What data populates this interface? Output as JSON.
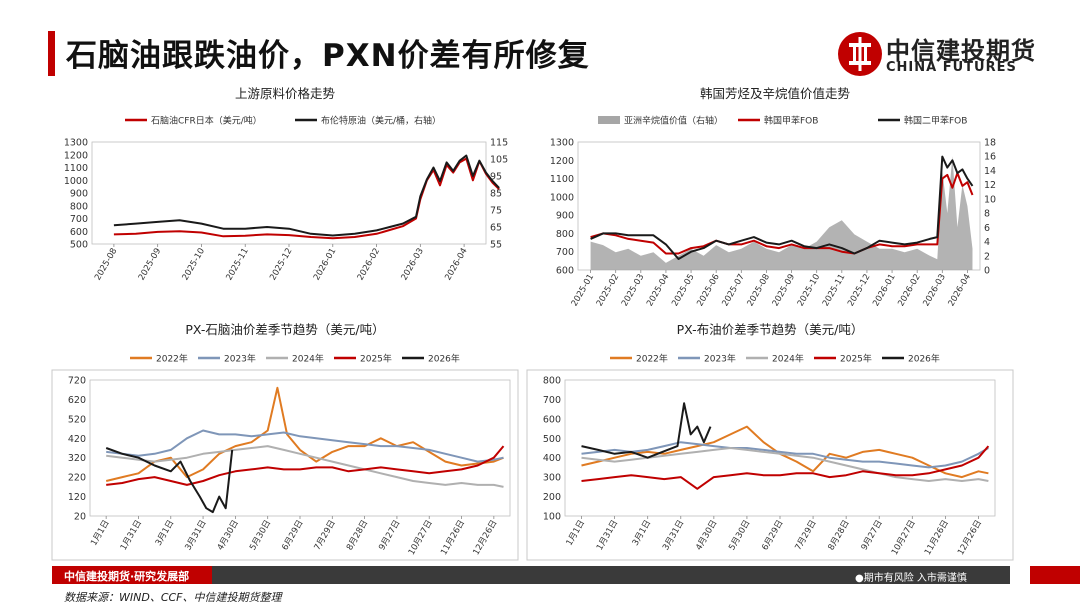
{
  "header": {
    "title": "石脑油跟跌油价，PXN价差有所修复",
    "logo_cn": "中信建投期货",
    "logo_en": "CHINA FUTURES"
  },
  "footer": {
    "brand": "中信建投期货·研究发展部",
    "risk": "●期市有风险   入市需谨慎",
    "source": "数据来源：WIND、CCF、中信建投期货整理"
  },
  "colors": {
    "red": "#c00000",
    "black": "#1a1a1a",
    "gray": "#a6a6a6",
    "orange": "#e07b22",
    "blue": "#7f96b8",
    "silver": "#b0b0b0"
  },
  "chart_data": [
    {
      "id": "c1",
      "type": "line",
      "title": "上游原料价格走势",
      "x_labels": [
        "2025-08",
        "2025-09",
        "2025-10",
        "2025-11",
        "2025-12",
        "2026-01",
        "2026-02",
        "2026-03",
        "2026-04"
      ],
      "y_left": {
        "min": 500,
        "max": 1300,
        "ticks": [
          500,
          600,
          700,
          800,
          900,
          1000,
          1100,
          1200,
          1300
        ]
      },
      "y_right": {
        "min": 55,
        "max": 115,
        "ticks": [
          55,
          65,
          75,
          85,
          95,
          105,
          115
        ]
      },
      "series": [
        {
          "name": "石脑油CFR日本（美元/吨）",
          "axis": "left",
          "color": "#c00000",
          "x": [
            0,
            0.5,
            1,
            1.5,
            2,
            2.5,
            3,
            3.5,
            4,
            4.5,
            5,
            5.5,
            6,
            6.3,
            6.6,
            6.9,
            7.0,
            7.15,
            7.3,
            7.45,
            7.6,
            7.75,
            7.9,
            8.05,
            8.2,
            8.35,
            8.5,
            8.65,
            8.8
          ],
          "values": [
            575,
            580,
            595,
            600,
            590,
            560,
            565,
            575,
            570,
            555,
            545,
            555,
            580,
            610,
            640,
            700,
            850,
            1000,
            1080,
            960,
            1120,
            1060,
            1140,
            1170,
            1000,
            1150,
            1050,
            980,
            930
          ]
        },
        {
          "name": "布伦特原油（美元/桶，右轴）",
          "axis": "right",
          "color": "#1a1a1a",
          "x": [
            0,
            0.5,
            1,
            1.5,
            2,
            2.5,
            3,
            3.5,
            4,
            4.5,
            5,
            5.5,
            6,
            6.3,
            6.6,
            6.9,
            7.0,
            7.15,
            7.3,
            7.45,
            7.6,
            7.75,
            7.9,
            8.05,
            8.2,
            8.35,
            8.5,
            8.65,
            8.8
          ],
          "values": [
            66,
            67,
            68,
            69,
            67,
            64,
            64,
            65,
            64,
            61,
            60,
            61,
            63,
            65,
            67,
            71,
            83,
            93,
            100,
            92,
            103,
            98,
            104,
            107,
            95,
            104,
            97,
            92,
            88
          ]
        }
      ]
    },
    {
      "id": "c2",
      "type": "line",
      "title": "韩国芳烃及辛烷值价值走势",
      "x_labels": [
        "2025-01",
        "2025-02",
        "2025-03",
        "2025-04",
        "2025-05",
        "2025-06",
        "2025-07",
        "2025-08",
        "2025-09",
        "2025-10",
        "2025-11",
        "2025-12",
        "2026-01",
        "2026-02",
        "2026-03",
        "2026-04"
      ],
      "y_left": {
        "min": 600,
        "max": 1300,
        "ticks": [
          600,
          700,
          800,
          900,
          1000,
          1100,
          1200,
          1300
        ]
      },
      "y_right": {
        "min": 0,
        "max": 18,
        "ticks": [
          0,
          2,
          4,
          6,
          8,
          10,
          12,
          14,
          16,
          18
        ]
      },
      "series": [
        {
          "name": "亚洲辛烷值价值（右轴）",
          "axis": "right",
          "color": "#a6a6a6",
          "kind": "area",
          "x": [
            0,
            0.5,
            1,
            1.5,
            2,
            2.5,
            3,
            3.5,
            4,
            4.5,
            5,
            5.5,
            6,
            6.5,
            7,
            7.5,
            8,
            8.5,
            9,
            9.5,
            10,
            10.5,
            11,
            11.5,
            12,
            12.5,
            13,
            13.5,
            13.8,
            14,
            14.2,
            14.4,
            14.6,
            14.8,
            15,
            15.2
          ],
          "values": [
            4,
            3.5,
            2.5,
            3,
            2,
            2.5,
            1,
            2,
            3,
            2,
            3.5,
            2.5,
            3,
            4,
            3,
            2.5,
            3.5,
            3,
            4,
            6,
            7,
            5,
            4,
            3,
            3,
            2.5,
            3,
            2,
            1.5,
            14,
            8,
            16,
            6,
            12,
            9,
            3
          ]
        },
        {
          "name": "韩国甲苯FOB",
          "axis": "left",
          "color": "#c00000",
          "x": [
            0,
            0.5,
            1,
            1.5,
            2,
            2.5,
            3,
            3.5,
            4,
            4.5,
            5,
            5.5,
            6,
            6.5,
            7,
            7.5,
            8,
            8.5,
            9,
            9.5,
            10,
            10.5,
            11,
            11.5,
            12,
            12.5,
            13,
            13.5,
            13.8,
            14,
            14.2,
            14.4,
            14.6,
            14.8,
            15,
            15.2
          ],
          "values": [
            780,
            800,
            790,
            770,
            760,
            750,
            690,
            690,
            720,
            730,
            760,
            740,
            740,
            760,
            730,
            720,
            740,
            720,
            720,
            720,
            700,
            690,
            720,
            740,
            730,
            730,
            740,
            740,
            740,
            1100,
            1120,
            1050,
            1130,
            1060,
            1080,
            1010
          ]
        },
        {
          "name": "韩国二甲苯FOB",
          "axis": "left",
          "color": "#1a1a1a",
          "x": [
            0,
            0.5,
            1,
            1.5,
            2,
            2.5,
            3,
            3.5,
            4,
            4.5,
            5,
            5.5,
            6,
            6.5,
            7,
            7.5,
            8,
            8.5,
            9,
            9.5,
            10,
            10.5,
            11,
            11.5,
            12,
            12.5,
            13,
            13.5,
            13.8,
            14,
            14.2,
            14.4,
            14.6,
            14.8,
            15,
            15.2
          ],
          "values": [
            770,
            800,
            800,
            790,
            790,
            790,
            740,
            660,
            700,
            720,
            760,
            740,
            760,
            780,
            750,
            740,
            760,
            730,
            720,
            740,
            720,
            690,
            720,
            760,
            750,
            740,
            750,
            770,
            780,
            1220,
            1160,
            1200,
            1130,
            1150,
            1100,
            1060
          ]
        }
      ]
    },
    {
      "id": "c3",
      "type": "line",
      "title": "PX-石脑油价差季节趋势（美元/吨）",
      "x_labels": [
        "1月1日",
        "1月31日",
        "3月1日",
        "3月31日",
        "4月30日",
        "5月30日",
        "6月29日",
        "7月29日",
        "8月28日",
        "9月27日",
        "10月27日",
        "11月26日",
        "12月26日"
      ],
      "y_left": {
        "min": 20,
        "max": 720,
        "ticks": [
          20,
          120,
          220,
          320,
          420,
          520,
          620,
          720
        ]
      },
      "series": [
        {
          "name": "2022年",
          "color": "#e07b22",
          "x": [
            0,
            0.5,
            1,
            1.5,
            2,
            2.5,
            3,
            3.5,
            4,
            4.5,
            5,
            5.3,
            5.6,
            6,
            6.5,
            7,
            7.5,
            8,
            8.5,
            9,
            9.5,
            10,
            10.5,
            11,
            11.5,
            12,
            12.3
          ],
          "values": [
            200,
            220,
            240,
            300,
            320,
            220,
            260,
            340,
            380,
            400,
            460,
            680,
            440,
            360,
            300,
            350,
            380,
            380,
            420,
            380,
            400,
            350,
            300,
            280,
            290,
            300,
            320
          ]
        },
        {
          "name": "2023年",
          "color": "#7f96b8",
          "x": [
            0,
            0.5,
            1,
            1.5,
            2,
            2.5,
            3,
            3.5,
            4,
            4.5,
            5,
            5.5,
            6,
            6.5,
            7,
            7.5,
            8,
            8.5,
            9,
            9.5,
            10,
            10.5,
            11,
            11.5,
            12,
            12.3
          ],
          "values": [
            350,
            340,
            330,
            340,
            360,
            420,
            460,
            440,
            440,
            430,
            440,
            450,
            430,
            420,
            410,
            400,
            390,
            380,
            380,
            370,
            360,
            340,
            320,
            300,
            310,
            320
          ]
        },
        {
          "name": "2024年",
          "color": "#b0b0b0",
          "x": [
            0,
            0.5,
            1,
            1.5,
            2,
            2.5,
            3,
            3.5,
            4,
            4.5,
            5,
            5.5,
            6,
            6.5,
            7,
            7.5,
            8,
            8.5,
            9,
            9.5,
            10,
            10.5,
            11,
            11.5,
            12,
            12.3
          ],
          "values": [
            330,
            320,
            310,
            300,
            310,
            320,
            340,
            350,
            360,
            370,
            380,
            360,
            340,
            320,
            300,
            280,
            260,
            240,
            220,
            200,
            190,
            180,
            190,
            180,
            180,
            170
          ]
        },
        {
          "name": "2025年",
          "color": "#c00000",
          "x": [
            0,
            0.5,
            1,
            1.5,
            2,
            2.5,
            3,
            3.5,
            4,
            4.5,
            5,
            5.5,
            6,
            6.5,
            7,
            7.5,
            8,
            8.5,
            9,
            9.5,
            10,
            10.5,
            11,
            11.5,
            12,
            12.3
          ],
          "values": [
            180,
            190,
            210,
            220,
            200,
            180,
            200,
            230,
            250,
            260,
            270,
            260,
            260,
            270,
            270,
            250,
            260,
            270,
            260,
            250,
            240,
            250,
            260,
            280,
            320,
            380
          ]
        },
        {
          "name": "2026年",
          "color": "#1a1a1a",
          "x": [
            0,
            0.5,
            1,
            1.5,
            2,
            2.3,
            2.6,
            2.9,
            3.1,
            3.3,
            3.5,
            3.7,
            3.9
          ],
          "values": [
            370,
            340,
            320,
            280,
            250,
            300,
            200,
            120,
            60,
            40,
            120,
            60,
            360
          ]
        }
      ]
    },
    {
      "id": "c4",
      "type": "line",
      "title": "PX-布油价差季节趋势（美元/吨）",
      "x_labels": [
        "1月1日",
        "1月31日",
        "3月1日",
        "3月31日",
        "4月30日",
        "5月30日",
        "6月29日",
        "7月29日",
        "8月28日",
        "9月27日",
        "10月27日",
        "11月26日",
        "12月26日"
      ],
      "y_left": {
        "min": 100,
        "max": 800,
        "ticks": [
          100,
          200,
          300,
          400,
          500,
          600,
          700,
          800
        ]
      },
      "series": [
        {
          "name": "2022年",
          "color": "#e07b22",
          "x": [
            0,
            0.5,
            1,
            1.5,
            2,
            2.5,
            3,
            3.5,
            4,
            4.5,
            5,
            5.5,
            6,
            6.5,
            7,
            7.5,
            8,
            8.5,
            9,
            9.5,
            10,
            10.5,
            11,
            11.5,
            12,
            12.3
          ],
          "values": [
            360,
            380,
            400,
            420,
            430,
            420,
            440,
            460,
            480,
            520,
            560,
            480,
            420,
            380,
            330,
            420,
            400,
            430,
            440,
            420,
            400,
            360,
            320,
            300,
            330,
            320
          ]
        },
        {
          "name": "2023年",
          "color": "#7f96b8",
          "x": [
            0,
            0.5,
            1,
            1.5,
            2,
            2.5,
            3,
            3.5,
            4,
            4.5,
            5,
            5.5,
            6,
            6.5,
            7,
            7.5,
            8,
            8.5,
            9,
            9.5,
            10,
            10.5,
            11,
            11.5,
            12,
            12.3
          ],
          "values": [
            420,
            430,
            440,
            430,
            440,
            460,
            480,
            470,
            460,
            450,
            450,
            440,
            430,
            420,
            420,
            400,
            390,
            380,
            380,
            370,
            360,
            350,
            360,
            380,
            420,
            450
          ]
        },
        {
          "name": "2024年",
          "color": "#b0b0b0",
          "x": [
            0,
            0.5,
            1,
            1.5,
            2,
            2.5,
            3,
            3.5,
            4,
            4.5,
            5,
            5.5,
            6,
            6.5,
            7,
            7.5,
            8,
            8.5,
            9,
            9.5,
            10,
            10.5,
            11,
            11.5,
            12,
            12.3
          ],
          "values": [
            400,
            390,
            380,
            390,
            400,
            410,
            420,
            430,
            440,
            450,
            440,
            430,
            420,
            410,
            400,
            380,
            360,
            340,
            320,
            300,
            290,
            280,
            290,
            280,
            290,
            280
          ]
        },
        {
          "name": "2025年",
          "color": "#c00000",
          "x": [
            0,
            0.5,
            1,
            1.5,
            2,
            2.5,
            3,
            3.5,
            4,
            4.5,
            5,
            5.5,
            6,
            6.5,
            7,
            7.5,
            8,
            8.5,
            9,
            9.5,
            10,
            10.5,
            11,
            11.5,
            12,
            12.3
          ],
          "values": [
            280,
            290,
            300,
            310,
            300,
            290,
            300,
            240,
            300,
            310,
            320,
            310,
            310,
            320,
            320,
            300,
            310,
            330,
            320,
            310,
            310,
            320,
            340,
            360,
            400,
            460
          ]
        },
        {
          "name": "2026年",
          "color": "#1a1a1a",
          "x": [
            0,
            0.5,
            1,
            1.5,
            2,
            2.3,
            2.6,
            2.9,
            3.1,
            3.3,
            3.5,
            3.7,
            3.9
          ],
          "values": [
            460,
            440,
            420,
            430,
            400,
            420,
            440,
            460,
            680,
            520,
            560,
            480,
            560
          ]
        }
      ]
    }
  ]
}
